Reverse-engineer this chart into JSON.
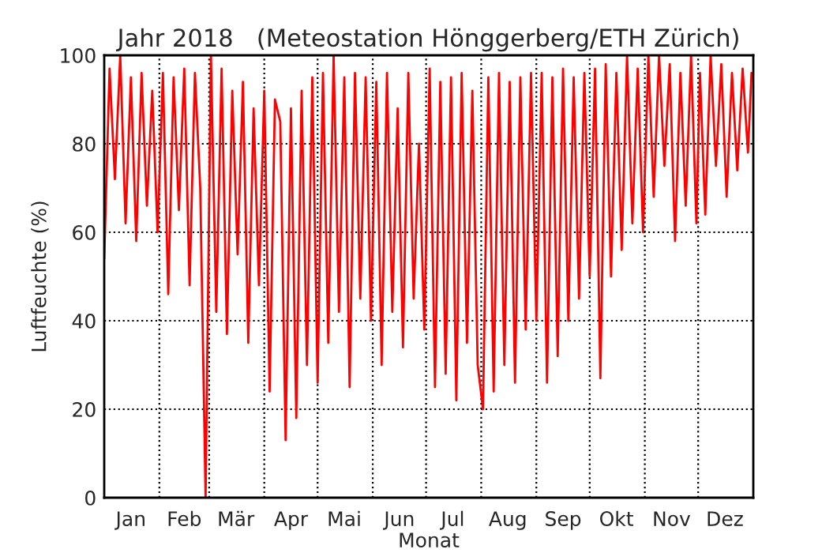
{
  "chart_data": {
    "type": "line",
    "title": "Jahr 2018   (Meteostation Hönggerberg/ETH Zürich)",
    "xlabel": "Monat",
    "ylabel": "Luftfeuchte (%)",
    "x": [
      "2018-01-01",
      "2018-01-04",
      "2018-01-07",
      "2018-01-10",
      "2018-01-13",
      "2018-01-16",
      "2018-01-19",
      "2018-01-22",
      "2018-01-25",
      "2018-01-28",
      "2018-01-31",
      "2018-02-03",
      "2018-02-06",
      "2018-02-09",
      "2018-02-12",
      "2018-02-15",
      "2018-02-18",
      "2018-02-21",
      "2018-02-24",
      "2018-02-27",
      "2018-03-02",
      "2018-03-05",
      "2018-03-08",
      "2018-03-11",
      "2018-03-14",
      "2018-03-17",
      "2018-03-20",
      "2018-03-23",
      "2018-03-26",
      "2018-03-29",
      "2018-04-01",
      "2018-04-04",
      "2018-04-07",
      "2018-04-10",
      "2018-04-13",
      "2018-04-16",
      "2018-04-19",
      "2018-04-22",
      "2018-04-25",
      "2018-04-28",
      "2018-05-01",
      "2018-05-04",
      "2018-05-07",
      "2018-05-10",
      "2018-05-13",
      "2018-05-16",
      "2018-05-19",
      "2018-05-22",
      "2018-05-25",
      "2018-05-28",
      "2018-05-31",
      "2018-06-03",
      "2018-06-06",
      "2018-06-09",
      "2018-06-12",
      "2018-06-15",
      "2018-06-18",
      "2018-06-21",
      "2018-06-24",
      "2018-06-27",
      "2018-06-30",
      "2018-07-03",
      "2018-07-06",
      "2018-07-09",
      "2018-07-12",
      "2018-07-15",
      "2018-07-18",
      "2018-07-21",
      "2018-07-24",
      "2018-07-27",
      "2018-07-30",
      "2018-08-02",
      "2018-08-05",
      "2018-08-08",
      "2018-08-11",
      "2018-08-14",
      "2018-08-17",
      "2018-08-20",
      "2018-08-23",
      "2018-08-26",
      "2018-08-29",
      "2018-09-01",
      "2018-09-04",
      "2018-09-07",
      "2018-09-10",
      "2018-09-13",
      "2018-09-16",
      "2018-09-19",
      "2018-09-22",
      "2018-09-25",
      "2018-09-28",
      "2018-10-01",
      "2018-10-04",
      "2018-10-07",
      "2018-10-10",
      "2018-10-13",
      "2018-10-16",
      "2018-10-19",
      "2018-10-22",
      "2018-10-25",
      "2018-10-28",
      "2018-10-31",
      "2018-11-03",
      "2018-11-06",
      "2018-11-09",
      "2018-11-12",
      "2018-11-15",
      "2018-11-18",
      "2018-11-21",
      "2018-11-24",
      "2018-11-27",
      "2018-11-30",
      "2018-12-02",
      "2018-12-05",
      "2018-12-08",
      "2018-12-11",
      "2018-12-14",
      "2018-12-17",
      "2018-12-20",
      "2018-12-23",
      "2018-12-26",
      "2018-12-29",
      "2018-12-31"
    ],
    "series": [
      {
        "color": "#ff0000",
        "values": [
          54,
          97,
          72,
          100,
          62,
          95,
          58,
          96,
          66,
          92,
          60,
          96,
          46,
          95,
          65,
          97,
          48,
          96,
          70,
          0,
          100,
          42,
          97,
          37,
          92,
          55,
          94,
          35,
          88,
          48,
          92,
          24,
          90,
          85,
          13,
          88,
          18,
          92,
          30,
          95,
          26,
          96,
          35,
          100,
          42,
          95,
          25,
          96,
          45,
          95,
          40,
          94,
          30,
          96,
          42,
          88,
          34,
          96,
          45,
          80,
          38,
          97,
          25,
          94,
          28,
          95,
          22,
          96,
          35,
          92,
          30,
          20,
          95,
          24,
          96,
          30,
          94,
          26,
          95,
          38,
          96,
          40,
          96,
          26,
          95,
          32,
          97,
          40,
          95,
          45,
          96,
          50,
          97,
          27,
          98,
          50,
          96,
          56,
          100,
          62,
          97,
          60,
          100,
          68,
          100,
          75,
          98,
          58,
          96,
          66,
          100,
          62,
          96,
          64,
          100,
          75,
          98,
          68,
          96,
          74,
          97,
          78,
          96
        ]
      }
    ],
    "xlim": [
      "2018-01-01",
      "2019-01-01"
    ],
    "xticks": [
      {
        "value": "2018-02-01",
        "label": null
      },
      {
        "value": "2018-03-01",
        "label": null
      },
      {
        "value": "2018-04-01",
        "label": null
      },
      {
        "value": "2018-05-01",
        "label": null
      },
      {
        "value": "2018-06-01",
        "label": null
      },
      {
        "value": "2018-07-01",
        "label": null
      },
      {
        "value": "2018-08-01",
        "label": null
      },
      {
        "value": "2018-09-01",
        "label": null
      },
      {
        "value": "2018-10-01",
        "label": null
      },
      {
        "value": "2018-11-01",
        "label": null
      },
      {
        "value": "2018-12-01",
        "label": null
      },
      {
        "value": "2018-01-16",
        "label": "Jan"
      },
      {
        "value": "2018-02-15",
        "label": "Feb"
      },
      {
        "value": "2018-03-16",
        "label": "Mär"
      },
      {
        "value": "2018-04-16",
        "label": "Apr"
      },
      {
        "value": "2018-05-16",
        "label": "Mai"
      },
      {
        "value": "2018-06-16",
        "label": "Jun"
      },
      {
        "value": "2018-07-16",
        "label": "Jul"
      },
      {
        "value": "2018-08-16",
        "label": "Aug"
      },
      {
        "value": "2018-09-16",
        "label": "Sep"
      },
      {
        "value": "2018-10-16",
        "label": "Okt"
      },
      {
        "value": "2018-11-16",
        "label": "Nov"
      },
      {
        "value": "2018-12-16",
        "label": "Dez"
      }
    ],
    "ylim": [
      0,
      100
    ],
    "yticks": [
      0,
      20,
      40,
      60,
      80,
      100
    ],
    "grid": true,
    "line_style": "solid"
  }
}
